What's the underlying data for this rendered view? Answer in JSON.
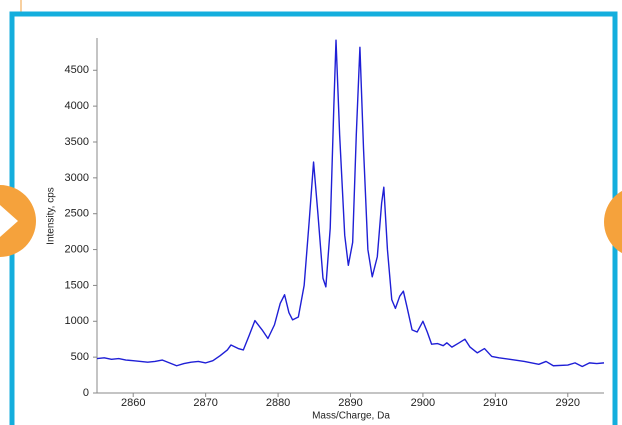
{
  "chart_data": {
    "type": "line",
    "y_label": "Intensity, cps",
    "x_label": "Mass/Charge, Da",
    "color": "#1f1fd6",
    "x": [
      2855,
      2856,
      2857,
      2858,
      2859,
      2860,
      2861,
      2862,
      2863,
      2864,
      2865,
      2866,
      2867,
      2868,
      2869,
      2870,
      2871,
      2872,
      2873,
      2873.5,
      2874.5,
      2875.2,
      2876,
      2876.8,
      2877.8,
      2878.6,
      2879.5,
      2880.3,
      2880.9,
      2881.5,
      2882,
      2882.8,
      2883.6,
      2884.3,
      2884.9,
      2885.5,
      2886.2,
      2886.6,
      2887.2,
      2887.7,
      2888,
      2888.5,
      2889.2,
      2889.7,
      2890.3,
      2890.8,
      2891.3,
      2891.8,
      2892.4,
      2893,
      2893.7,
      2894.3,
      2894.6,
      2895.1,
      2895.7,
      2896.2,
      2896.8,
      2897.3,
      2897.8,
      2898.5,
      2899.2,
      2900,
      2900.6,
      2901.2,
      2902,
      2902.8,
      2903.3,
      2904,
      2905,
      2905.8,
      2906.5,
      2907.5,
      2908.5,
      2909.5,
      2910.5,
      2912,
      2914,
      2916,
      2917,
      2918,
      2920,
      2921,
      2922,
      2923,
      2924,
      2925
    ],
    "values": [
      480,
      490,
      470,
      480,
      460,
      450,
      440,
      430,
      440,
      460,
      420,
      380,
      410,
      430,
      440,
      420,
      450,
      520,
      600,
      670,
      620,
      600,
      800,
      1010,
      880,
      760,
      950,
      1250,
      1370,
      1120,
      1020,
      1060,
      1500,
      2400,
      3220,
      2500,
      1600,
      1480,
      2300,
      4000,
      4920,
      3600,
      2200,
      1780,
      2100,
      3600,
      4820,
      3400,
      2000,
      1620,
      1900,
      2650,
      2870,
      2000,
      1300,
      1180,
      1350,
      1420,
      1200,
      880,
      850,
      1000,
      850,
      680,
      690,
      660,
      700,
      640,
      700,
      750,
      640,
      560,
      620,
      510,
      490,
      470,
      440,
      400,
      440,
      380,
      390,
      420,
      370,
      420,
      410,
      420
    ],
    "xlim": [
      2855,
      2925
    ],
    "xticks": [
      2860,
      2870,
      2880,
      2890,
      2900,
      2910,
      2920
    ],
    "ylim": [
      0,
      4950
    ],
    "yticks": [
      0,
      500,
      1000,
      1500,
      2000,
      2500,
      3000,
      3500,
      4000,
      4500
    ]
  }
}
